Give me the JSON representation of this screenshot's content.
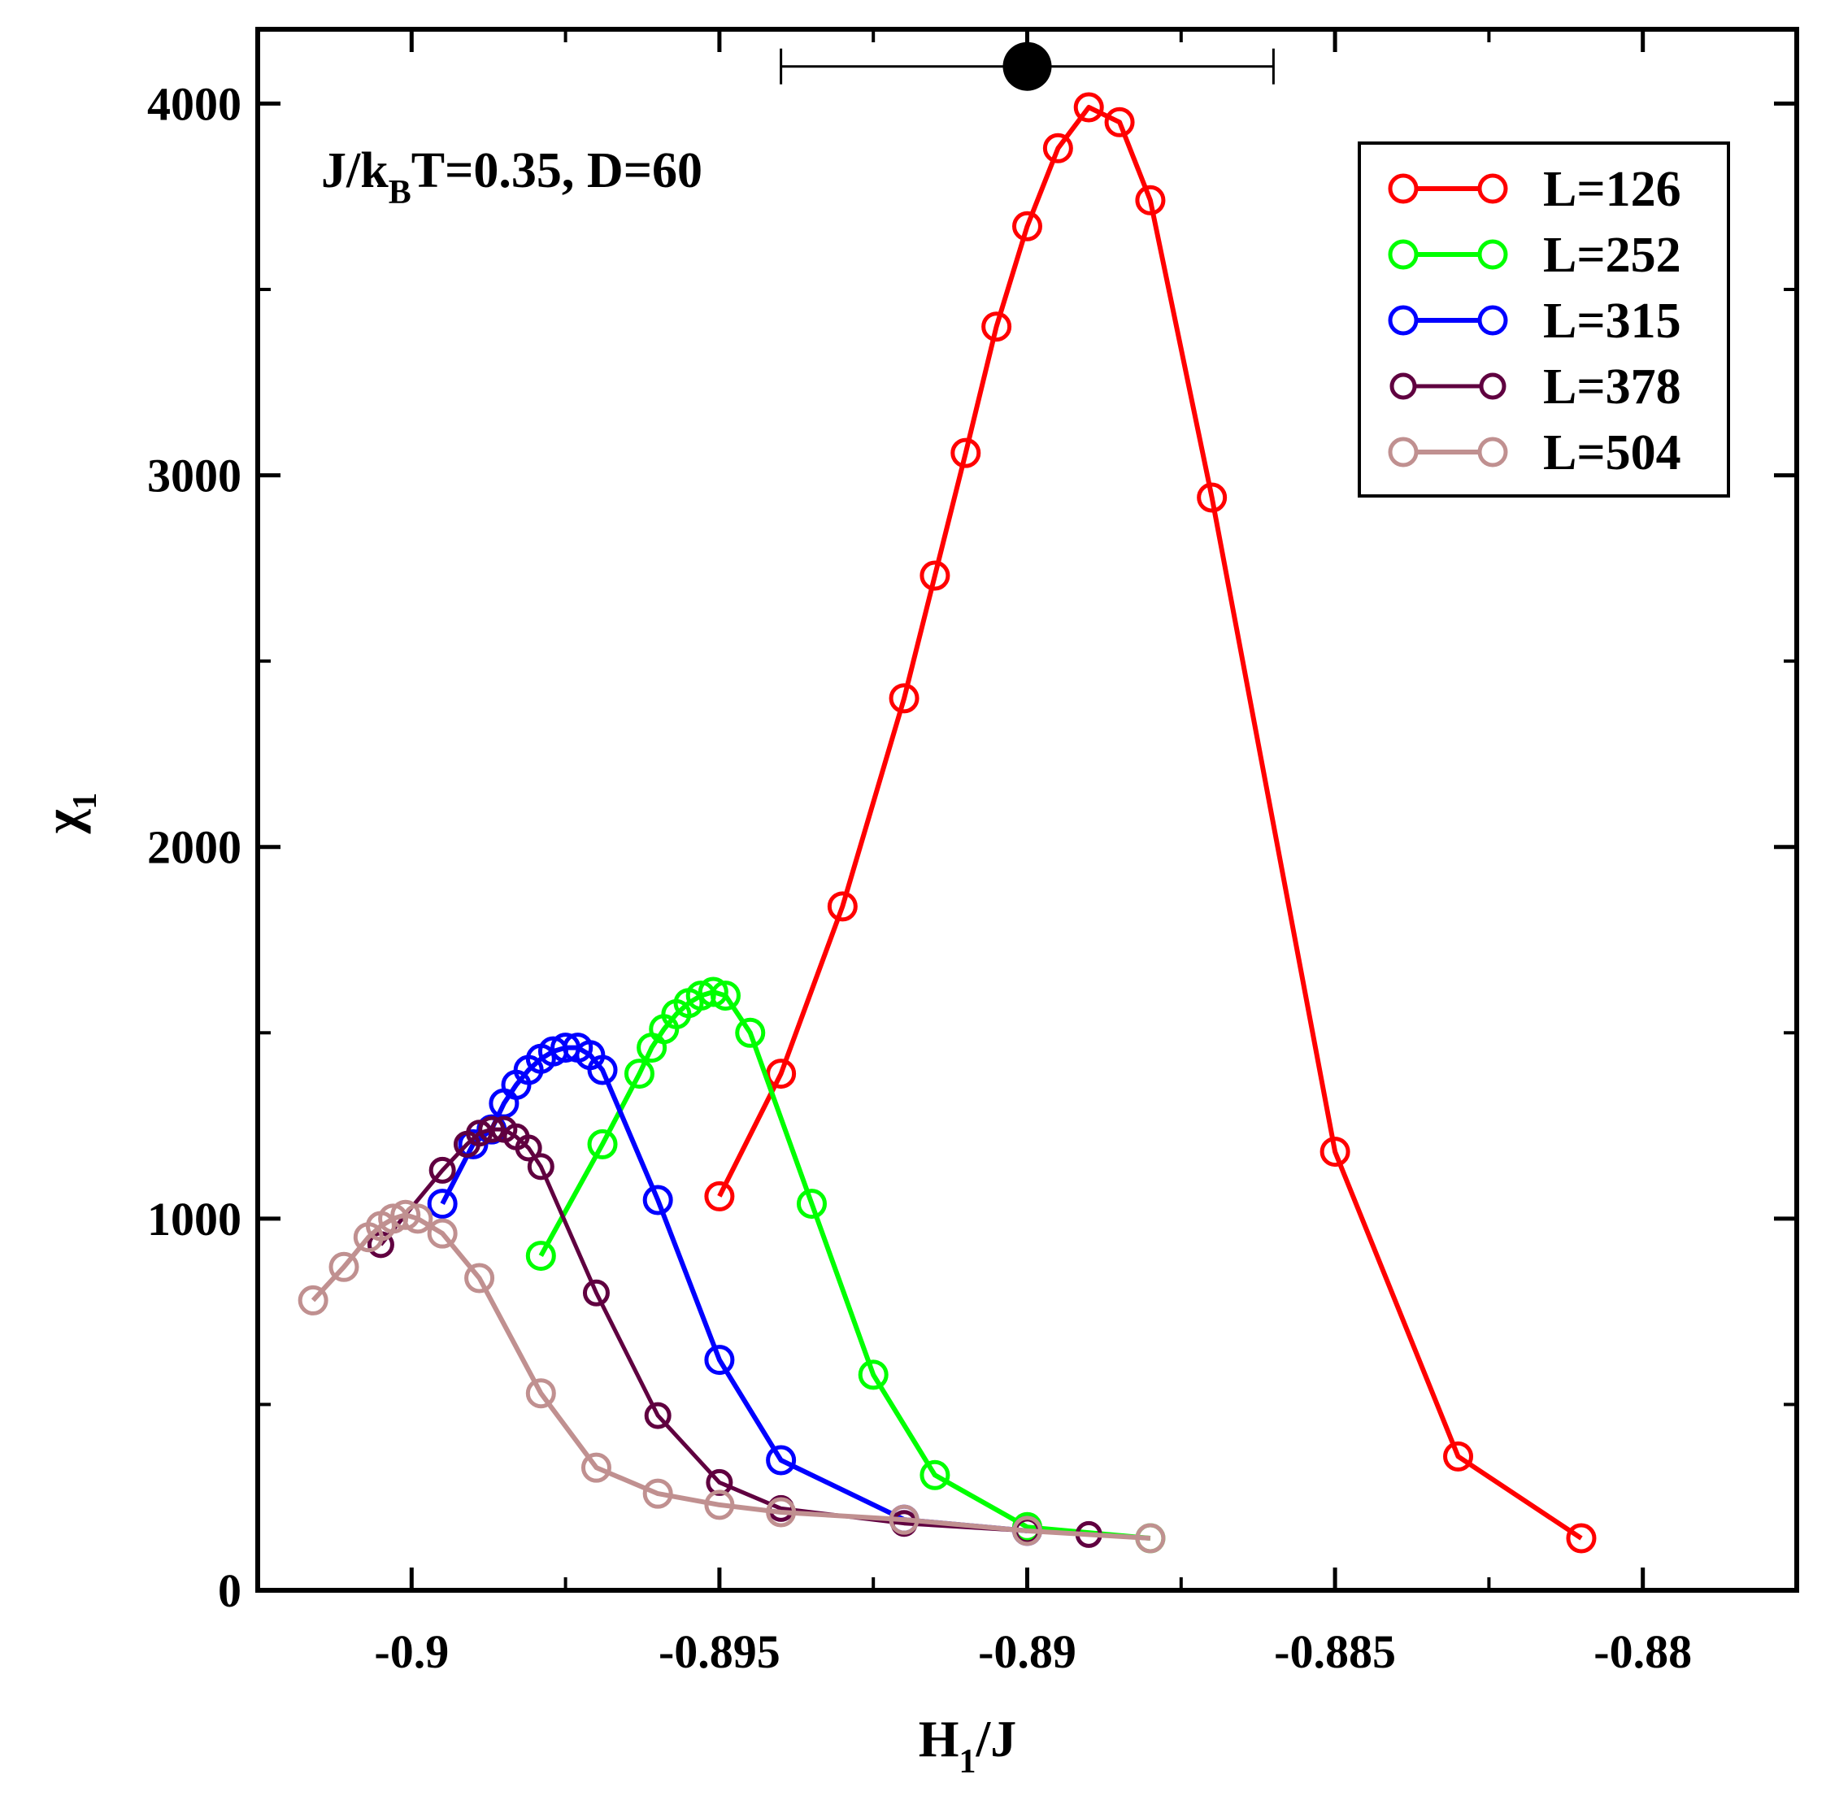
{
  "chart_data": {
    "type": "line",
    "title": "",
    "xlabel": "H",
    "xlabel_sub": "1",
    "xlabel_suffix": "/J",
    "ylabel": "χ",
    "ylabel_sub": "1",
    "xlim": [
      -0.9025,
      -0.8775
    ],
    "ylim": [
      0,
      4200
    ],
    "xticks": [
      -0.9,
      -0.895,
      -0.89,
      -0.885,
      -0.88
    ],
    "xtick_labels": [
      "-0.9",
      "-0.895",
      "-0.89",
      "-0.885",
      "-0.88"
    ],
    "yticks": [
      0,
      1000,
      2000,
      3000,
      4000
    ],
    "ytick_labels": [
      "0",
      "1000",
      "2000",
      "3000",
      "4000"
    ],
    "annotation": {
      "parts": [
        "J/k",
        "B",
        "T=0.35, D=60"
      ]
    },
    "errorbar_point": {
      "x": -0.89,
      "y": 4100,
      "xerr_low": -0.894,
      "xerr_high": -0.886,
      "color": "#000000"
    },
    "legend_position": "top-right",
    "series": [
      {
        "name": "L=126",
        "color": "#ff0000",
        "x": [
          -0.895,
          -0.894,
          -0.893,
          -0.892,
          -0.8915,
          -0.891,
          -0.8905,
          -0.89,
          -0.8895,
          -0.889,
          -0.8885,
          -0.888,
          -0.887,
          -0.885,
          -0.883,
          -0.881
        ],
        "y": [
          1060,
          1390,
          1840,
          2400,
          2730,
          3060,
          3400,
          3670,
          3880,
          3990,
          3950,
          3740,
          2940,
          1180,
          360,
          140
        ]
      },
      {
        "name": "L=252",
        "color": "#00ff00",
        "x": [
          -0.8979,
          -0.8969,
          -0.8963,
          -0.8961,
          -0.8959,
          -0.8957,
          -0.8955,
          -0.8953,
          -0.8951,
          -0.8949,
          -0.8945,
          -0.8935,
          -0.8925,
          -0.8915,
          -0.89,
          -0.888
        ],
        "y": [
          900,
          1200,
          1390,
          1460,
          1510,
          1550,
          1580,
          1600,
          1610,
          1600,
          1500,
          1040,
          580,
          310,
          170,
          140
        ]
      },
      {
        "name": "L=315",
        "color": "#0000ff",
        "x": [
          -0.8995,
          -0.899,
          -0.8987,
          -0.8985,
          -0.8983,
          -0.8981,
          -0.8979,
          -0.8977,
          -0.8975,
          -0.8973,
          -0.8971,
          -0.8969,
          -0.896,
          -0.895,
          -0.894,
          -0.892,
          -0.89
        ],
        "y": [
          1040,
          1200,
          1240,
          1310,
          1360,
          1400,
          1430,
          1450,
          1460,
          1460,
          1440,
          1400,
          1050,
          620,
          350,
          190,
          160
        ]
      },
      {
        "name": "L=378",
        "color": "#600040",
        "x": [
          -0.9005,
          -0.8995,
          -0.8991,
          -0.8989,
          -0.8987,
          -0.8985,
          -0.8983,
          -0.8981,
          -0.8979,
          -0.897,
          -0.896,
          -0.895,
          -0.894,
          -0.892,
          -0.89,
          -0.889
        ],
        "y": [
          930,
          1130,
          1200,
          1230,
          1240,
          1240,
          1220,
          1190,
          1140,
          800,
          470,
          290,
          220,
          180,
          160,
          150
        ]
      },
      {
        "name": "L=504",
        "color": "#c09090",
        "x": [
          -0.9016,
          -0.9011,
          -0.9007,
          -0.9005,
          -0.9003,
          -0.9001,
          -0.8999,
          -0.8995,
          -0.8989,
          -0.8979,
          -0.897,
          -0.896,
          -0.895,
          -0.894,
          -0.892,
          -0.89,
          -0.888
        ],
        "y": [
          780,
          870,
          950,
          980,
          1000,
          1010,
          1000,
          960,
          840,
          530,
          330,
          260,
          230,
          210,
          190,
          160,
          140
        ]
      }
    ]
  }
}
